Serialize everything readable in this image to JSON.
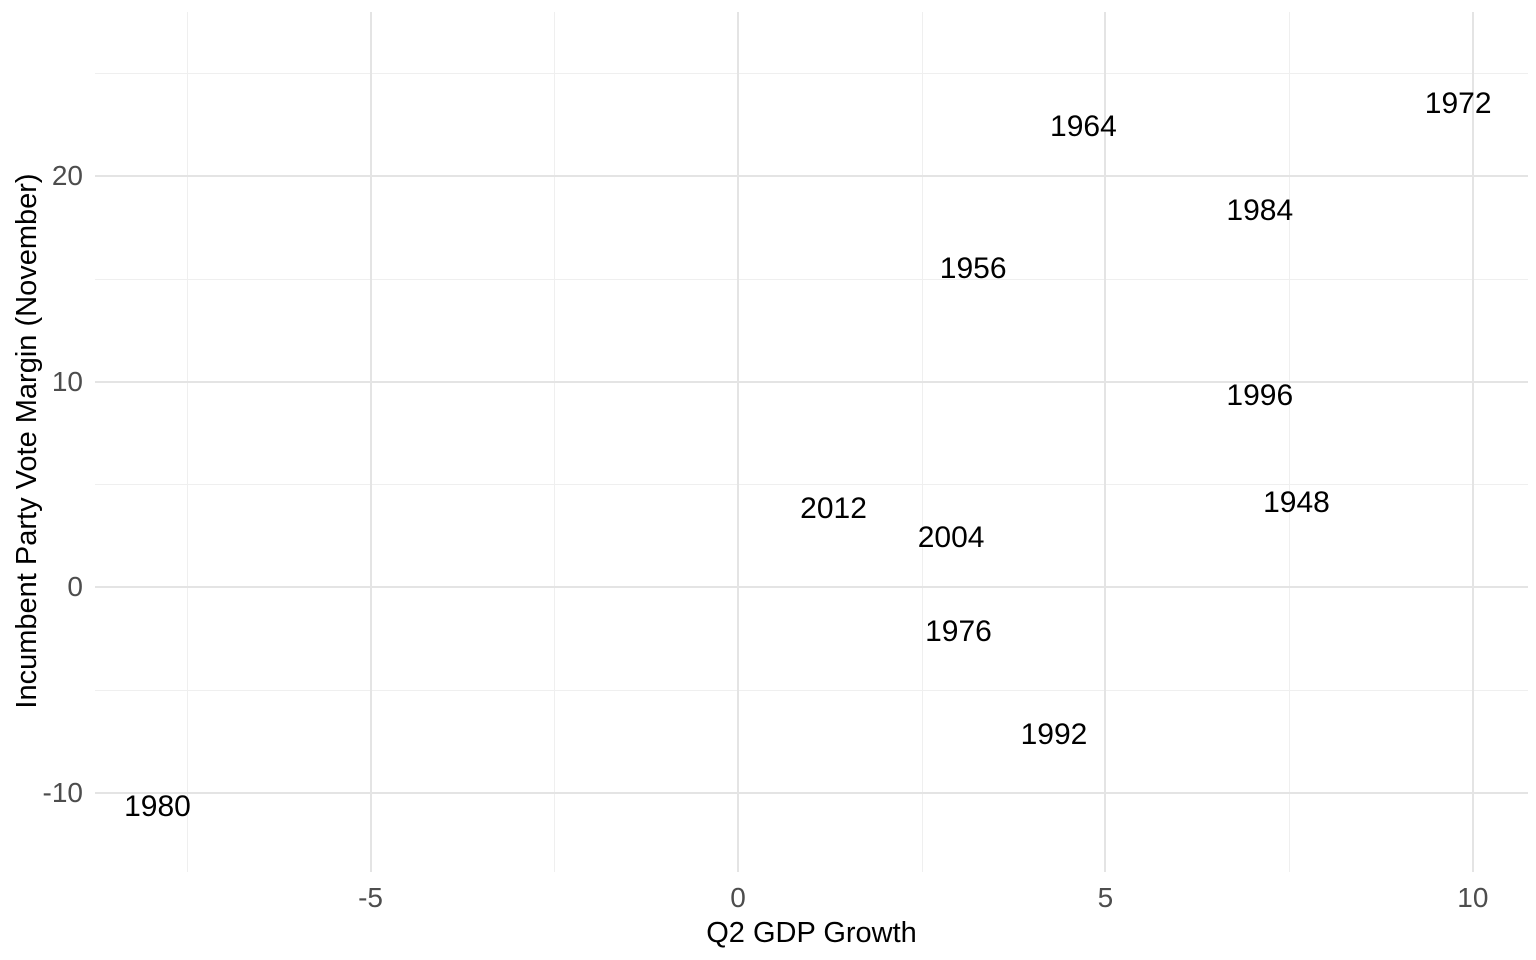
{
  "chart_data": {
    "type": "scatter",
    "title": "",
    "xlabel": "Q2 GDP Growth",
    "ylabel": "Incumbent Party Vote Margin (November)",
    "x_ticks": [
      -5,
      0,
      5,
      10
    ],
    "y_ticks": [
      -10,
      0,
      10,
      20
    ],
    "x_minor_gridlines": [
      -7.5,
      -2.5,
      2.5,
      7.5
    ],
    "y_minor_gridlines": [
      -5,
      5,
      15,
      25
    ],
    "xlim": [
      -8.75,
      10.75
    ],
    "ylim": [
      -13.86,
      27.98
    ],
    "grid": "major and minor, light gray on white",
    "legend": "none",
    "marker": "text-year-labels",
    "points": [
      {
        "label": "1948",
        "x": 7.6,
        "y": 4.1
      },
      {
        "label": "1956",
        "x": 3.2,
        "y": 15.5
      },
      {
        "label": "1964",
        "x": 4.7,
        "y": 22.4
      },
      {
        "label": "1972",
        "x": 9.8,
        "y": 23.5
      },
      {
        "label": "1976",
        "x": 3.0,
        "y": -2.2
      },
      {
        "label": "1980",
        "x": -7.9,
        "y": -10.7
      },
      {
        "label": "1984",
        "x": 7.1,
        "y": 18.3
      },
      {
        "label": "1992",
        "x": 4.3,
        "y": -7.2
      },
      {
        "label": "1996",
        "x": 7.1,
        "y": 9.3
      },
      {
        "label": "2004",
        "x": 2.9,
        "y": 2.4
      },
      {
        "label": "2012",
        "x": 1.3,
        "y": 3.8
      }
    ],
    "colors": {
      "background": "#FFFFFF",
      "grid_major": "#E4E4E4",
      "grid_minor": "#EFEFEF",
      "tick_label": "#4D4D4D",
      "axis_title": "#000000",
      "point_label": "#000000"
    }
  }
}
